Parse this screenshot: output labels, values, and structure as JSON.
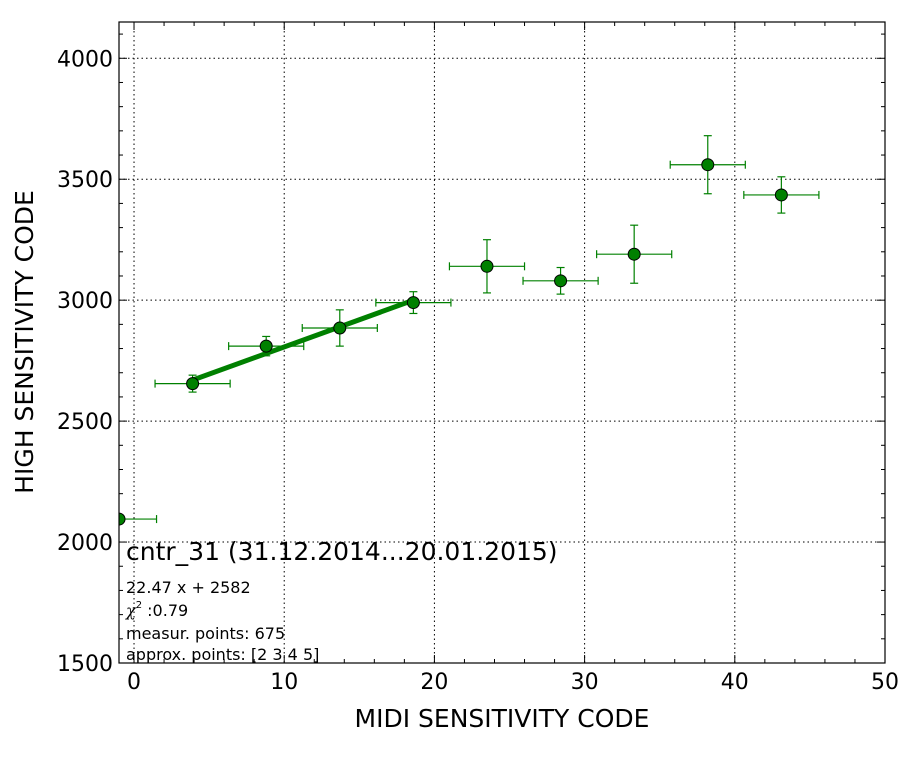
{
  "chart_data": {
    "type": "scatter",
    "xlabel": "MIDI SENSITIVITY CODE",
    "ylabel": "HIGH SENSITIVITY CODE",
    "xlim": [
      -1,
      50
    ],
    "ylim": [
      1500,
      4150
    ],
    "xticks": [
      0,
      10,
      20,
      30,
      40,
      50
    ],
    "yticks": [
      1500,
      2000,
      2500,
      3000,
      3500,
      4000
    ],
    "grid": true,
    "series": [
      {
        "marker": "circle",
        "color": "#008000",
        "points": [
          {
            "x": -1.0,
            "y": 2095,
            "xerr": 2.5,
            "yerr": 0
          },
          {
            "x": 3.9,
            "y": 2655,
            "xerr": 2.5,
            "yerr": 35
          },
          {
            "x": 8.8,
            "y": 2810,
            "xerr": 2.5,
            "yerr": 40
          },
          {
            "x": 13.7,
            "y": 2885,
            "xerr": 2.5,
            "yerr": 75
          },
          {
            "x": 18.6,
            "y": 2990,
            "xerr": 2.5,
            "yerr": 45
          },
          {
            "x": 23.5,
            "y": 3140,
            "xerr": 2.5,
            "yerr": 110
          },
          {
            "x": 28.4,
            "y": 3080,
            "xerr": 2.5,
            "yerr": 55
          },
          {
            "x": 33.3,
            "y": 3190,
            "xerr": 2.5,
            "yerr": 120
          },
          {
            "x": 38.2,
            "y": 3560,
            "xerr": 2.5,
            "yerr": 120
          },
          {
            "x": 43.1,
            "y": 3435,
            "xerr": 2.5,
            "yerr": 75
          }
        ]
      }
    ],
    "fit_line": {
      "slope": 22.47,
      "intercept": 2582,
      "x_range": [
        3.9,
        18.6
      ],
      "color": "#008000"
    },
    "annotations": {
      "title": "cntr_31 (31.12.2014...20.01.2015)",
      "equation": "22.47 x + 2582",
      "chi_symbol": "χ",
      "chi_sup": "2",
      "chi_value": " :0.79",
      "measur": "measur. points: 675",
      "approx": "approx. points: [2 3 4 5]"
    }
  }
}
